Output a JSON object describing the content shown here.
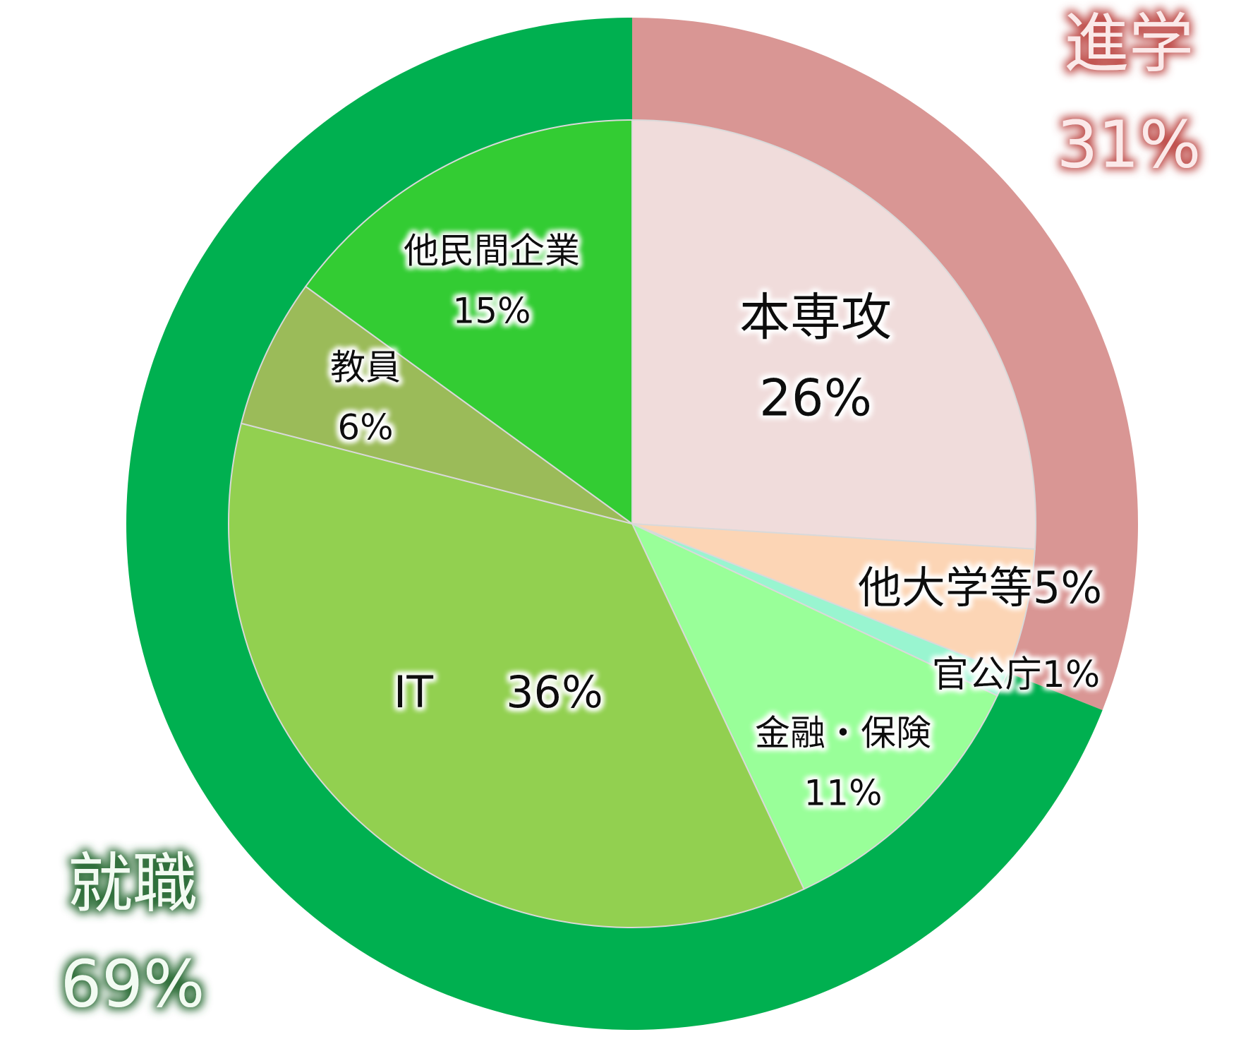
{
  "chart_data": {
    "type": "pie",
    "rings": [
      {
        "categories": [
          "進学",
          "就職"
        ],
        "values": [
          31,
          69
        ],
        "value_labels": [
          "31%",
          "69%"
        ],
        "colors": [
          "#d99694",
          "#00b050"
        ]
      },
      {
        "categories": [
          "本専攻",
          "他大学等",
          "官公庁",
          "金融・保険",
          "IT",
          "教員",
          "他民間企業"
        ],
        "values": [
          26,
          5,
          1,
          11,
          36,
          6,
          15
        ],
        "value_labels": [
          "26%",
          "5%",
          "1%",
          "11%",
          "36%",
          "6%",
          "15%"
        ],
        "colors": [
          "#f0dcdb",
          "#fcd5b5",
          "#99f5d0",
          "#99ff99",
          "#92d050",
          "#9bbb59",
          "#33cc33"
        ]
      }
    ]
  }
}
